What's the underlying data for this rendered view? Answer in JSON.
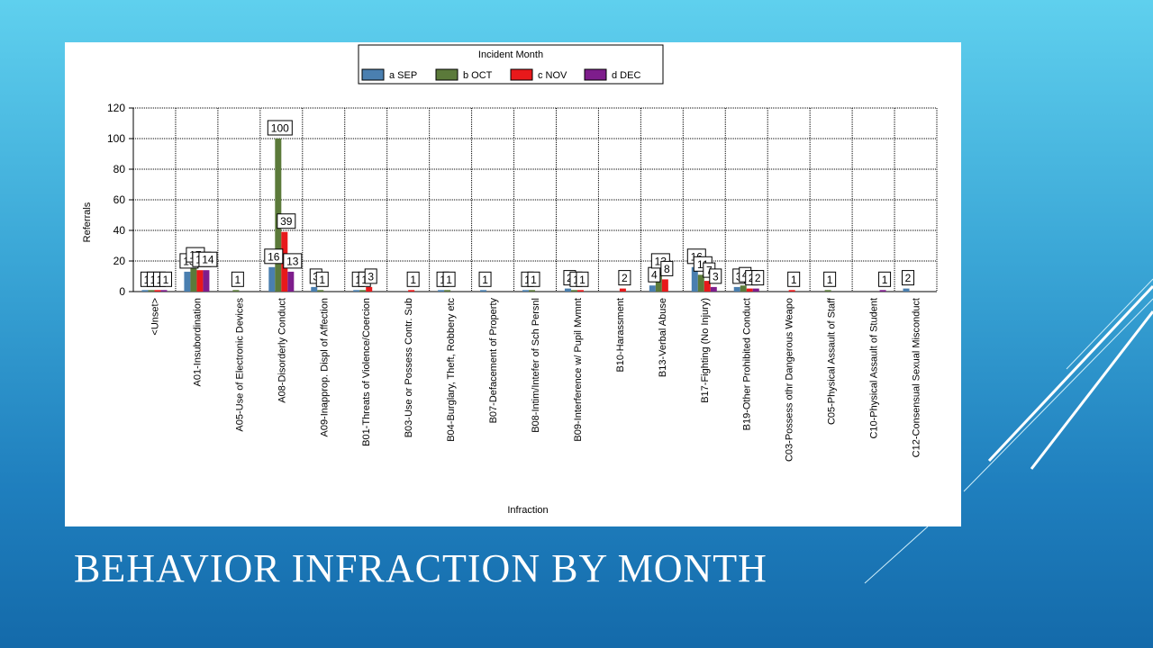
{
  "slide": {
    "title": "BEHAVIOR INFRACTION BY MONTH"
  },
  "chart_data": {
    "type": "bar",
    "legend_title": "Incident Month",
    "legend_placement": "top-center",
    "xlabel": "Infraction",
    "ylabel": "Referrals",
    "ylim": [
      0,
      120
    ],
    "yticks": [
      0,
      20,
      40,
      60,
      80,
      100,
      120
    ],
    "grid": true,
    "categories": [
      "<Unset>",
      "A01-Insubordination",
      "A05-Use of Electronic Devices",
      "A08-Disorderly Conduct",
      "A09-Inapprop. Displ of Affection",
      "B01-Threats of Violence/Coercion",
      "B03-Use or Possess Contr. Sub",
      "B04-Burglary, Theft, Robbery etc",
      "B07-Defacement of Property",
      "B08-Intim/Intefer of Sch Persnl",
      "B09-Interference w/ Pupil Mvmnt",
      "B10-Harassment",
      "B13-Verbal Abuse",
      "B17-Fighting (No Injury)",
      "B19-Other Prohibited Conduct",
      "C03-Possess othr Dangerous Weapo",
      "C05-Physical Assault of Staff",
      "C10-Physical Assault of Student",
      "C12-Consensual Sexual Misconduct"
    ],
    "series": [
      {
        "name": "a  SEP",
        "color": "#4a7fb0",
        "values": [
          1,
          13,
          null,
          16,
          3,
          1,
          null,
          1,
          1,
          1,
          2,
          null,
          4,
          16,
          3,
          null,
          null,
          null,
          2
        ]
      },
      {
        "name": "b  OCT",
        "color": "#5b7a3a",
        "values": [
          1,
          17,
          1,
          100,
          1,
          1,
          null,
          1,
          null,
          1,
          1,
          null,
          13,
          11,
          4,
          null,
          1,
          null,
          null
        ]
      },
      {
        "name": "c  NOV",
        "color": "#e8191b",
        "values": [
          1,
          14,
          null,
          39,
          null,
          3,
          1,
          null,
          null,
          null,
          1,
          2,
          8,
          7,
          2,
          1,
          null,
          null,
          null
        ]
      },
      {
        "name": "d  DEC",
        "color": "#7e1d8c",
        "values": [
          1,
          14,
          null,
          13,
          null,
          null,
          null,
          null,
          null,
          null,
          null,
          null,
          null,
          3,
          2,
          null,
          null,
          1,
          null
        ]
      }
    ]
  }
}
